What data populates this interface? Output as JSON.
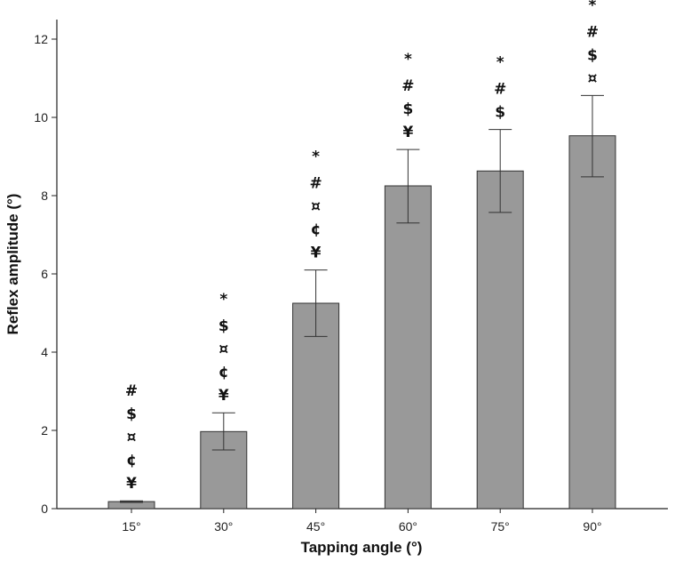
{
  "chart_data": {
    "type": "bar",
    "title": "",
    "xlabel": "Tapping angle (°)",
    "ylabel": "Reflex amplitude (°)",
    "categories": [
      "15°",
      "30°",
      "45°",
      "60°",
      "75°",
      "90°"
    ],
    "values": [
      0.18,
      1.97,
      5.25,
      8.25,
      8.63,
      9.53
    ],
    "error_low": [
      0.16,
      1.5,
      4.4,
      7.3,
      7.57,
      8.48
    ],
    "error_high": [
      0.2,
      2.45,
      6.1,
      9.18,
      9.69,
      10.56
    ],
    "significance_markers": [
      [
        "#",
        "$",
        "¤",
        "¢",
        "¥"
      ],
      [
        "*",
        "$",
        "¤",
        "¢",
        "¥"
      ],
      [
        "*",
        "#",
        "¤",
        "¢",
        "¥"
      ],
      [
        "*",
        "#",
        "$",
        "¥"
      ],
      [
        "*",
        "#",
        "$"
      ],
      [
        "*",
        "#",
        "$",
        "¤"
      ]
    ],
    "ylim": [
      0,
      12.5
    ],
    "yticks": [
      0,
      2,
      4,
      6,
      8,
      10,
      12
    ],
    "grid": false,
    "colors": {
      "bar": "#999999",
      "bar_edge": "#333333",
      "axis": "#222222"
    }
  }
}
